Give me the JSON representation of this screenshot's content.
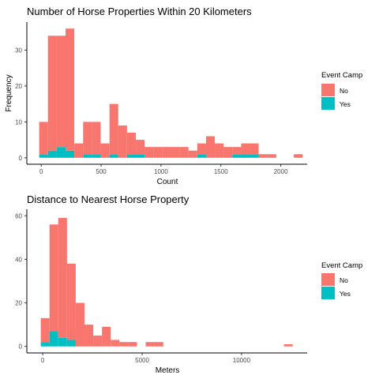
{
  "colors": {
    "no": "#F8766D",
    "yes": "#00BFC4",
    "axis": "#000000",
    "tick_text": "#4D4D4D"
  },
  "chart_data": [
    {
      "type": "histogram",
      "stacking": "stacked",
      "title": "Number of Horse Properties Within 20 Kilometers",
      "xlabel": "Count",
      "ylabel": "Frequency",
      "xlim": [
        -120,
        2220
      ],
      "ylim": [
        -1.8,
        37.8
      ],
      "xticks": [
        0,
        500,
        1000,
        1500,
        2000
      ],
      "yticks": [
        0,
        10,
        20,
        30
      ],
      "bin_width": 73.3,
      "grid": false,
      "legend": {
        "title": "Event Camp",
        "position": "right",
        "items": [
          "No",
          "Yes"
        ]
      },
      "bins": [
        {
          "x0": -17,
          "x1": 56,
          "no": 9,
          "yes": 1
        },
        {
          "x0": 56,
          "x1": 130,
          "no": 32,
          "yes": 2
        },
        {
          "x0": 130,
          "x1": 203,
          "no": 31,
          "yes": 3
        },
        {
          "x0": 203,
          "x1": 276,
          "no": 34,
          "yes": 2
        },
        {
          "x0": 276,
          "x1": 350,
          "no": 4,
          "yes": 0
        },
        {
          "x0": 350,
          "x1": 423,
          "no": 9,
          "yes": 1
        },
        {
          "x0": 423,
          "x1": 496,
          "no": 9,
          "yes": 1
        },
        {
          "x0": 496,
          "x1": 570,
          "no": 4,
          "yes": 0
        },
        {
          "x0": 570,
          "x1": 643,
          "no": 14,
          "yes": 1
        },
        {
          "x0": 643,
          "x1": 716,
          "no": 9,
          "yes": 0
        },
        {
          "x0": 716,
          "x1": 790,
          "no": 6,
          "yes": 1
        },
        {
          "x0": 790,
          "x1": 863,
          "no": 4,
          "yes": 1
        },
        {
          "x0": 863,
          "x1": 936,
          "no": 3,
          "yes": 0
        },
        {
          "x0": 936,
          "x1": 1009,
          "no": 3,
          "yes": 0
        },
        {
          "x0": 1009,
          "x1": 1083,
          "no": 3,
          "yes": 0
        },
        {
          "x0": 1083,
          "x1": 1156,
          "no": 3,
          "yes": 0
        },
        {
          "x0": 1156,
          "x1": 1229,
          "no": 3,
          "yes": 0
        },
        {
          "x0": 1229,
          "x1": 1303,
          "no": 2,
          "yes": 0
        },
        {
          "x0": 1303,
          "x1": 1376,
          "no": 3,
          "yes": 1
        },
        {
          "x0": 1376,
          "x1": 1449,
          "no": 6,
          "yes": 0
        },
        {
          "x0": 1449,
          "x1": 1522,
          "no": 4,
          "yes": 0
        },
        {
          "x0": 1522,
          "x1": 1596,
          "no": 3,
          "yes": 0
        },
        {
          "x0": 1596,
          "x1": 1669,
          "no": 2,
          "yes": 1
        },
        {
          "x0": 1669,
          "x1": 1742,
          "no": 3,
          "yes": 1
        },
        {
          "x0": 1742,
          "x1": 1815,
          "no": 3,
          "yes": 1
        },
        {
          "x0": 1815,
          "x1": 1889,
          "no": 1,
          "yes": 0
        },
        {
          "x0": 1889,
          "x1": 1962,
          "no": 1,
          "yes": 0
        },
        {
          "x0": 1962,
          "x1": 2035,
          "no": 0,
          "yes": 0
        },
        {
          "x0": 2035,
          "x1": 2109,
          "no": 0,
          "yes": 0
        },
        {
          "x0": 2109,
          "x1": 2182,
          "no": 1,
          "yes": 0
        }
      ]
    },
    {
      "type": "histogram",
      "stacking": "stacked",
      "title": "Distance to Nearest Horse Property",
      "xlabel": "Meters",
      "ylabel": "",
      "xlim": [
        -800,
        13300
      ],
      "ylim": [
        -3,
        63
      ],
      "xticks": [
        0,
        5000,
        10000
      ],
      "yticks": [
        0,
        20,
        40,
        60
      ],
      "bin_width": 440,
      "grid": false,
      "legend": {
        "title": "Event Camp",
        "position": "right",
        "items": [
          "No",
          "Yes"
        ]
      },
      "bins": [
        {
          "x0": -100,
          "x1": 340,
          "no": 11,
          "yes": 2
        },
        {
          "x0": 340,
          "x1": 780,
          "no": 49,
          "yes": 7
        },
        {
          "x0": 780,
          "x1": 1220,
          "no": 55,
          "yes": 4
        },
        {
          "x0": 1220,
          "x1": 1660,
          "no": 35,
          "yes": 3
        },
        {
          "x0": 1660,
          "x1": 2100,
          "no": 20,
          "yes": 0
        },
        {
          "x0": 2100,
          "x1": 2540,
          "no": 10,
          "yes": 0
        },
        {
          "x0": 2540,
          "x1": 2980,
          "no": 5,
          "yes": 0
        },
        {
          "x0": 2980,
          "x1": 3420,
          "no": 9,
          "yes": 0
        },
        {
          "x0": 3420,
          "x1": 3860,
          "no": 3,
          "yes": 0
        },
        {
          "x0": 3860,
          "x1": 4300,
          "no": 2,
          "yes": 0
        },
        {
          "x0": 4300,
          "x1": 4740,
          "no": 2,
          "yes": 0
        },
        {
          "x0": 4740,
          "x1": 5180,
          "no": 0,
          "yes": 0
        },
        {
          "x0": 5180,
          "x1": 5620,
          "no": 2,
          "yes": 0
        },
        {
          "x0": 5620,
          "x1": 6060,
          "no": 2,
          "yes": 0
        },
        {
          "x0": 12130,
          "x1": 12570,
          "no": 1,
          "yes": 0
        }
      ]
    }
  ]
}
